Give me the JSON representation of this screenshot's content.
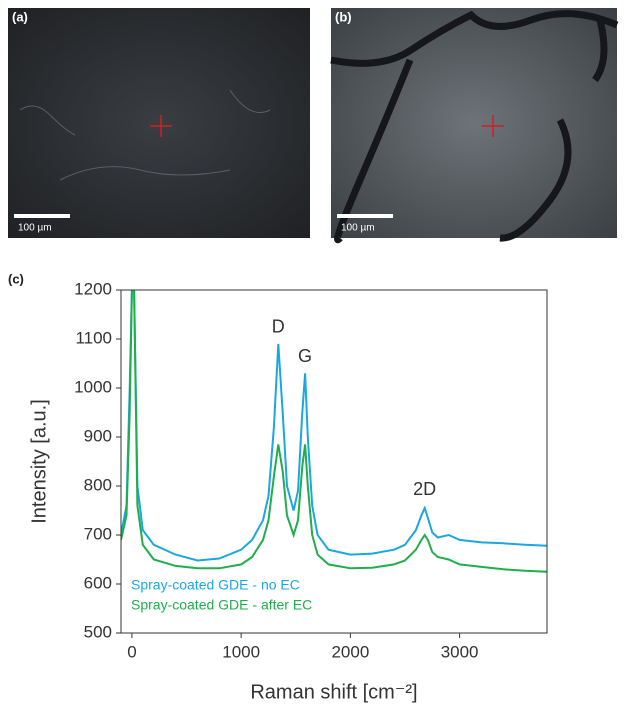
{
  "panels": [
    {
      "label": "(a)",
      "scale_bar": "100 µm"
    },
    {
      "label": "(b)",
      "scale_bar": "100 µm"
    }
  ],
  "chart_data": {
    "type": "line",
    "label": "(c)",
    "xlabel": "Raman shift [cm⁻²]",
    "ylabel": "Intensity [a.u.]",
    "annotations": [
      "D",
      "G",
      "2D"
    ],
    "xlim": [
      -100,
      3800
    ],
    "xticks": [
      0,
      1000,
      2000,
      3000
    ],
    "ylim": [
      500,
      1200
    ],
    "yticks": [
      500,
      600,
      700,
      800,
      900,
      1000,
      1100,
      1200
    ],
    "x": [
      -100,
      -50,
      -20,
      0,
      20,
      50,
      100,
      200,
      400,
      600,
      800,
      1000,
      1100,
      1200,
      1250,
      1300,
      1340,
      1380,
      1420,
      1480,
      1520,
      1560,
      1585,
      1610,
      1650,
      1700,
      1800,
      2000,
      2200,
      2400,
      2500,
      2600,
      2650,
      2680,
      2710,
      2750,
      2800,
      2900,
      3000,
      3200,
      3400,
      3600,
      3800
    ],
    "series": [
      {
        "name": "Spray-coated GDE - no EC",
        "color": "#1aa7e0",
        "values": [
          700,
          760,
          1000,
          1200,
          1200,
          800,
          710,
          680,
          660,
          648,
          652,
          670,
          690,
          730,
          780,
          920,
          1090,
          950,
          800,
          750,
          790,
          950,
          1030,
          900,
          760,
          700,
          670,
          660,
          662,
          670,
          680,
          710,
          740,
          755,
          735,
          705,
          695,
          700,
          690,
          685,
          683,
          680,
          678
        ]
      },
      {
        "name": "Spray-coated GDE - after EC",
        "color": "#1fae4b",
        "values": [
          690,
          740,
          950,
          1200,
          1200,
          760,
          680,
          650,
          637,
          632,
          632,
          640,
          655,
          690,
          730,
          820,
          885,
          830,
          740,
          700,
          730,
          840,
          885,
          800,
          700,
          660,
          640,
          632,
          633,
          640,
          648,
          670,
          690,
          700,
          690,
          665,
          655,
          650,
          640,
          635,
          630,
          627,
          625
        ]
      }
    ],
    "legend": "lower left"
  }
}
